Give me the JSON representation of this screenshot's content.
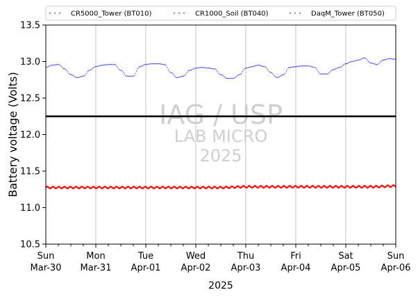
{
  "chart_data": {
    "type": "scatter",
    "xlabel": "2025",
    "ylabel": "Battery voltage (Volts)",
    "ylim": [
      10.5,
      13.5
    ],
    "xlim": [
      "2025-03-30",
      "2025-04-06"
    ],
    "yticks": [
      "10.5",
      "11.0",
      "11.5",
      "12.0",
      "12.5",
      "13.0",
      "13.5"
    ],
    "xticks": [
      {
        "date": "2025-03-30",
        "day": "Sun",
        "label": "Mar-30"
      },
      {
        "date": "2025-03-31",
        "day": "Mon",
        "label": "Mar-31"
      },
      {
        "date": "2025-04-01",
        "day": "Tue",
        "label": "Apr-01"
      },
      {
        "date": "2025-04-02",
        "day": "Wed",
        "label": "Apr-02"
      },
      {
        "date": "2025-04-03",
        "day": "Thu",
        "label": "Apr-03"
      },
      {
        "date": "2025-04-04",
        "day": "Fri",
        "label": "Apr-04"
      },
      {
        "date": "2025-04-05",
        "day": "Sat",
        "label": "Apr-05"
      },
      {
        "date": "2025-04-06",
        "day": "Sun",
        "label": "Apr-06"
      }
    ],
    "grid": "vertical lines at day ticks",
    "legend_placement": "top, above plot",
    "reference_line": {
      "y": 12.25,
      "color": "#000000"
    },
    "watermark": [
      "IAG / USP",
      "LAB MICRO",
      "2025"
    ],
    "series": [
      {
        "name": "CR5000_Tower (BT010)",
        "color": "#2b2bff",
        "x": [
          "2025-03-30 00:00",
          "2025-03-30 03:00",
          "2025-03-30 06:00",
          "2025-03-30 09:00",
          "2025-03-30 12:00",
          "2025-03-30 15:00",
          "2025-03-30 18:00",
          "2025-03-30 21:00",
          "2025-03-31 00:00",
          "2025-03-31 03:00",
          "2025-03-31 06:00",
          "2025-03-31 09:00",
          "2025-03-31 12:00",
          "2025-03-31 15:00",
          "2025-03-31 18:00",
          "2025-03-31 21:00",
          "2025-04-01 00:00",
          "2025-04-01 03:00",
          "2025-04-01 06:00",
          "2025-04-01 09:00",
          "2025-04-01 12:00",
          "2025-04-01 15:00",
          "2025-04-01 18:00",
          "2025-04-01 21:00",
          "2025-04-02 00:00",
          "2025-04-02 03:00",
          "2025-04-02 06:00",
          "2025-04-02 09:00",
          "2025-04-02 12:00",
          "2025-04-02 15:00",
          "2025-04-02 18:00",
          "2025-04-02 21:00",
          "2025-04-03 00:00",
          "2025-04-03 03:00",
          "2025-04-03 06:00",
          "2025-04-03 09:00",
          "2025-04-03 12:00",
          "2025-04-03 15:00",
          "2025-04-03 18:00",
          "2025-04-03 21:00",
          "2025-04-04 00:00",
          "2025-04-04 03:00",
          "2025-04-04 06:00",
          "2025-04-04 09:00",
          "2025-04-04 12:00",
          "2025-04-04 15:00",
          "2025-04-04 18:00",
          "2025-04-04 21:00",
          "2025-04-05 00:00",
          "2025-04-05 03:00",
          "2025-04-05 06:00",
          "2025-04-05 09:00",
          "2025-04-05 12:00",
          "2025-04-05 15:00",
          "2025-04-05 18:00",
          "2025-04-05 21:00",
          "2025-04-06 00:00"
        ],
        "y": [
          12.92,
          12.95,
          12.96,
          12.9,
          12.82,
          12.78,
          12.8,
          12.88,
          12.93,
          12.95,
          12.96,
          12.96,
          12.88,
          12.8,
          12.8,
          12.93,
          12.96,
          12.97,
          12.97,
          12.96,
          12.85,
          12.78,
          12.8,
          12.88,
          12.91,
          12.92,
          12.91,
          12.9,
          12.82,
          12.77,
          12.77,
          12.82,
          12.91,
          12.93,
          12.95,
          12.93,
          12.85,
          12.78,
          12.82,
          12.92,
          12.93,
          12.94,
          12.94,
          12.92,
          12.83,
          12.83,
          12.89,
          12.92,
          12.97,
          13.0,
          13.02,
          13.05,
          12.98,
          12.96,
          13.02,
          13.04,
          13.03
        ]
      },
      {
        "name": "CR1000_Soil (BT040)",
        "color": "#ff0000",
        "x": [
          "2025-03-30",
          "2025-03-30 12:00",
          "2025-03-31",
          "2025-03-31 12:00",
          "2025-04-01",
          "2025-04-01 12:00",
          "2025-04-02",
          "2025-04-02 12:00",
          "2025-04-03",
          "2025-04-03 12:00",
          "2025-04-04",
          "2025-04-04 12:00",
          "2025-04-05",
          "2025-04-05 12:00",
          "2025-04-06"
        ],
        "y": [
          11.28,
          11.28,
          11.28,
          11.28,
          11.28,
          11.28,
          11.28,
          11.28,
          11.29,
          11.29,
          11.29,
          11.29,
          11.29,
          11.29,
          11.3
        ]
      },
      {
        "name": "DaqM_Tower (BT050)",
        "color": "#3a3a66",
        "x": [],
        "y": []
      }
    ]
  }
}
